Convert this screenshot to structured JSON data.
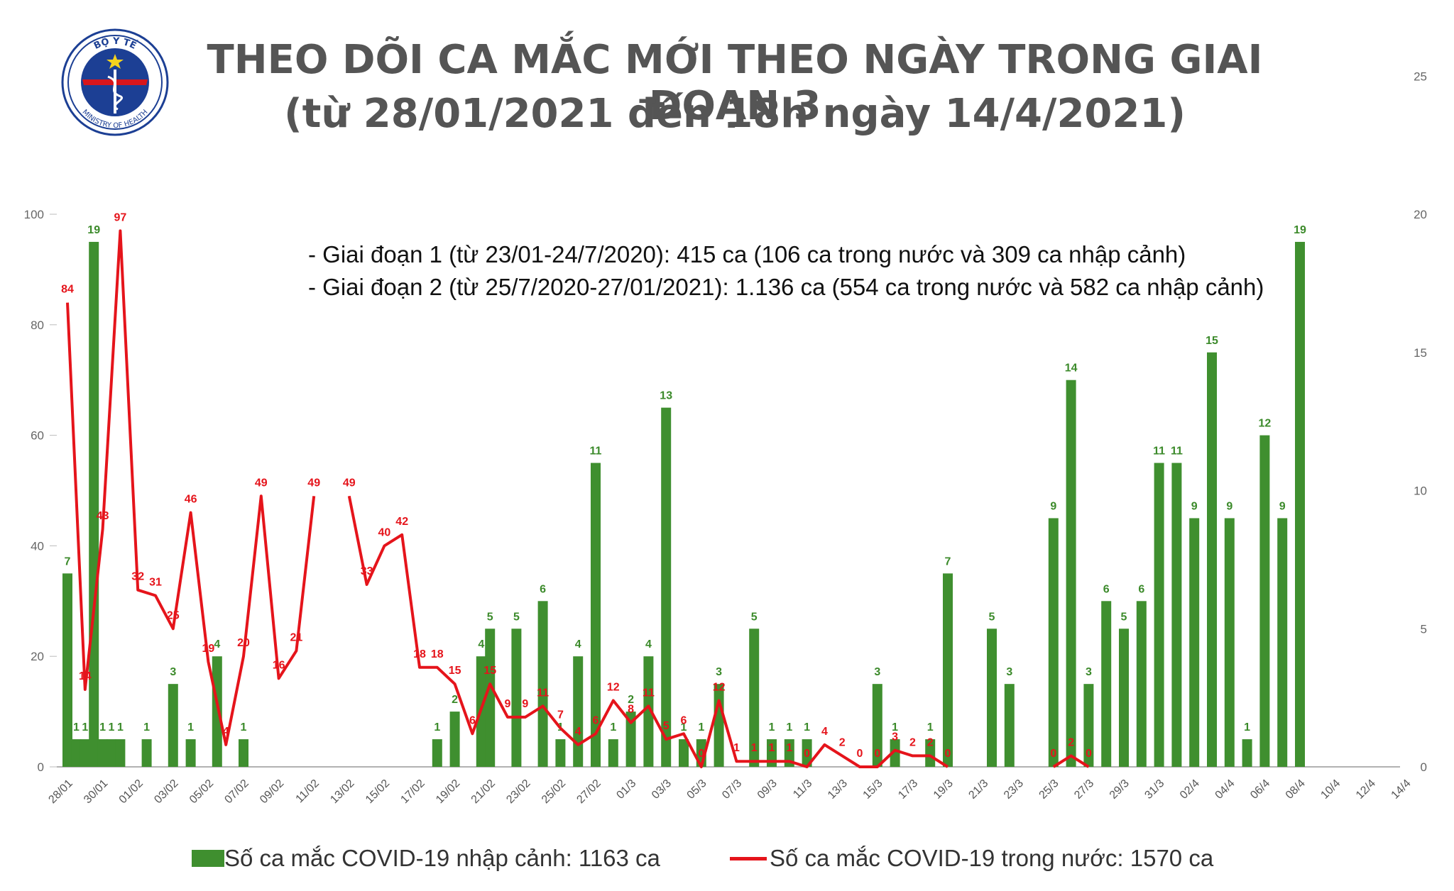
{
  "title": {
    "line1": "THEO DÕI CA MẮC MỚI THEO NGÀY TRONG GIAI ĐOẠN 3",
    "line2": "(từ 28/01/2021 đến 18h ngày 14/4/2021)"
  },
  "notes": [
    "- Giai đoạn 1 (từ 23/01-24/7/2020): 415 ca (106 ca trong nước và 309 ca nhập cảnh)",
    "- Giai đoạn 2 (từ 25/7/2020-27/01/2021): 1.136 ca (554 ca trong nước và 582 ca nhập cảnh)"
  ],
  "logo": {
    "top_text": "BỘ Y TẾ",
    "bottom_text": "MINISTRY OF HEALTH"
  },
  "legend": {
    "bars": "Số ca mắc COVID-19 nhập cảnh: 1163 ca",
    "line": "Số ca mắc COVID-19 trong nước: 1570 ca"
  },
  "colors": {
    "bar": "#3f8f2f",
    "bar_label": "#3b8a2a",
    "line": "#e5141b",
    "title": "#555555"
  },
  "chart_data": {
    "type": "bar+line",
    "title": "THEO DÕI CA MẮC MỚI THEO NGÀY TRONG GIAI ĐOẠN 3",
    "left_axis": {
      "ylim": [
        0,
        100
      ],
      "ticks": [
        0,
        20,
        40,
        60,
        80,
        100
      ],
      "series": "Số ca mắc COVID-19 trong nước"
    },
    "right_axis": {
      "ylim": [
        0,
        25
      ],
      "ticks": [
        0,
        5,
        10,
        15,
        20,
        25
      ],
      "series": "Số ca mắc COVID-19 nhập cảnh"
    },
    "x_tick_labels": [
      "28/01",
      "30/01",
      "01/02",
      "03/02",
      "05/02",
      "07/02",
      "09/02",
      "11/02",
      "13/02",
      "15/02",
      "17/02",
      "19/02",
      "21/02",
      "23/02",
      "25/02",
      "27/02",
      "01/3",
      "03/3",
      "05/3",
      "07/3",
      "09/3",
      "11/3",
      "13/3",
      "15/3",
      "17/3",
      "19/3",
      "21/3",
      "23/3",
      "25/3",
      "27/3",
      "29/3",
      "31/3",
      "02/4",
      "04/4",
      "06/4",
      "08/4",
      "10/4",
      "12/4",
      "14/4"
    ],
    "bars": [
      7,
      1,
      1,
      19,
      1,
      1,
      1,
      null,
      null,
      1,
      null,
      null,
      3,
      null,
      1,
      null,
      null,
      4,
      null,
      null,
      1,
      null,
      null,
      null,
      null,
      null,
      null,
      null,
      null,
      null,
      null,
      null,
      null,
      null,
      null,
      null,
      null,
      null,
      null,
      null,
      null,
      null,
      1,
      null,
      2,
      null,
      null,
      4,
      5,
      null,
      null,
      5,
      null,
      null,
      6,
      null,
      1,
      null,
      4,
      null,
      11,
      null,
      1,
      null,
      2,
      null,
      4,
      null,
      13,
      null,
      1,
      null,
      1,
      null,
      3,
      null,
      null,
      null,
      5,
      null,
      1,
      null,
      1,
      null,
      1,
      null,
      null,
      null,
      null,
      null,
      null,
      null,
      3,
      null,
      1,
      null,
      null,
      null,
      1,
      null,
      7,
      null,
      null,
      null,
      null,
      5,
      null,
      3,
      null,
      null,
      null,
      null,
      9,
      null,
      14,
      null,
      3,
      null,
      6,
      null,
      5,
      null,
      6,
      null,
      11,
      null,
      11,
      null,
      9,
      null,
      15,
      null,
      9,
      null,
      1,
      null,
      12,
      null,
      9,
      null,
      19
    ],
    "line": [
      84,
      14,
      43,
      97,
      32,
      31,
      25,
      46,
      19,
      4,
      20,
      49,
      16,
      21,
      49,
      null,
      49,
      33,
      40,
      42,
      18,
      18,
      15,
      6,
      15,
      9,
      9,
      11,
      7,
      4,
      6,
      12,
      8,
      11,
      5,
      6,
      0,
      12,
      1,
      1,
      1,
      1,
      0,
      4,
      2,
      0,
      0,
      3,
      2,
      2,
      0,
      null,
      null,
      null,
      null,
      null,
      0,
      2,
      0
    ]
  }
}
